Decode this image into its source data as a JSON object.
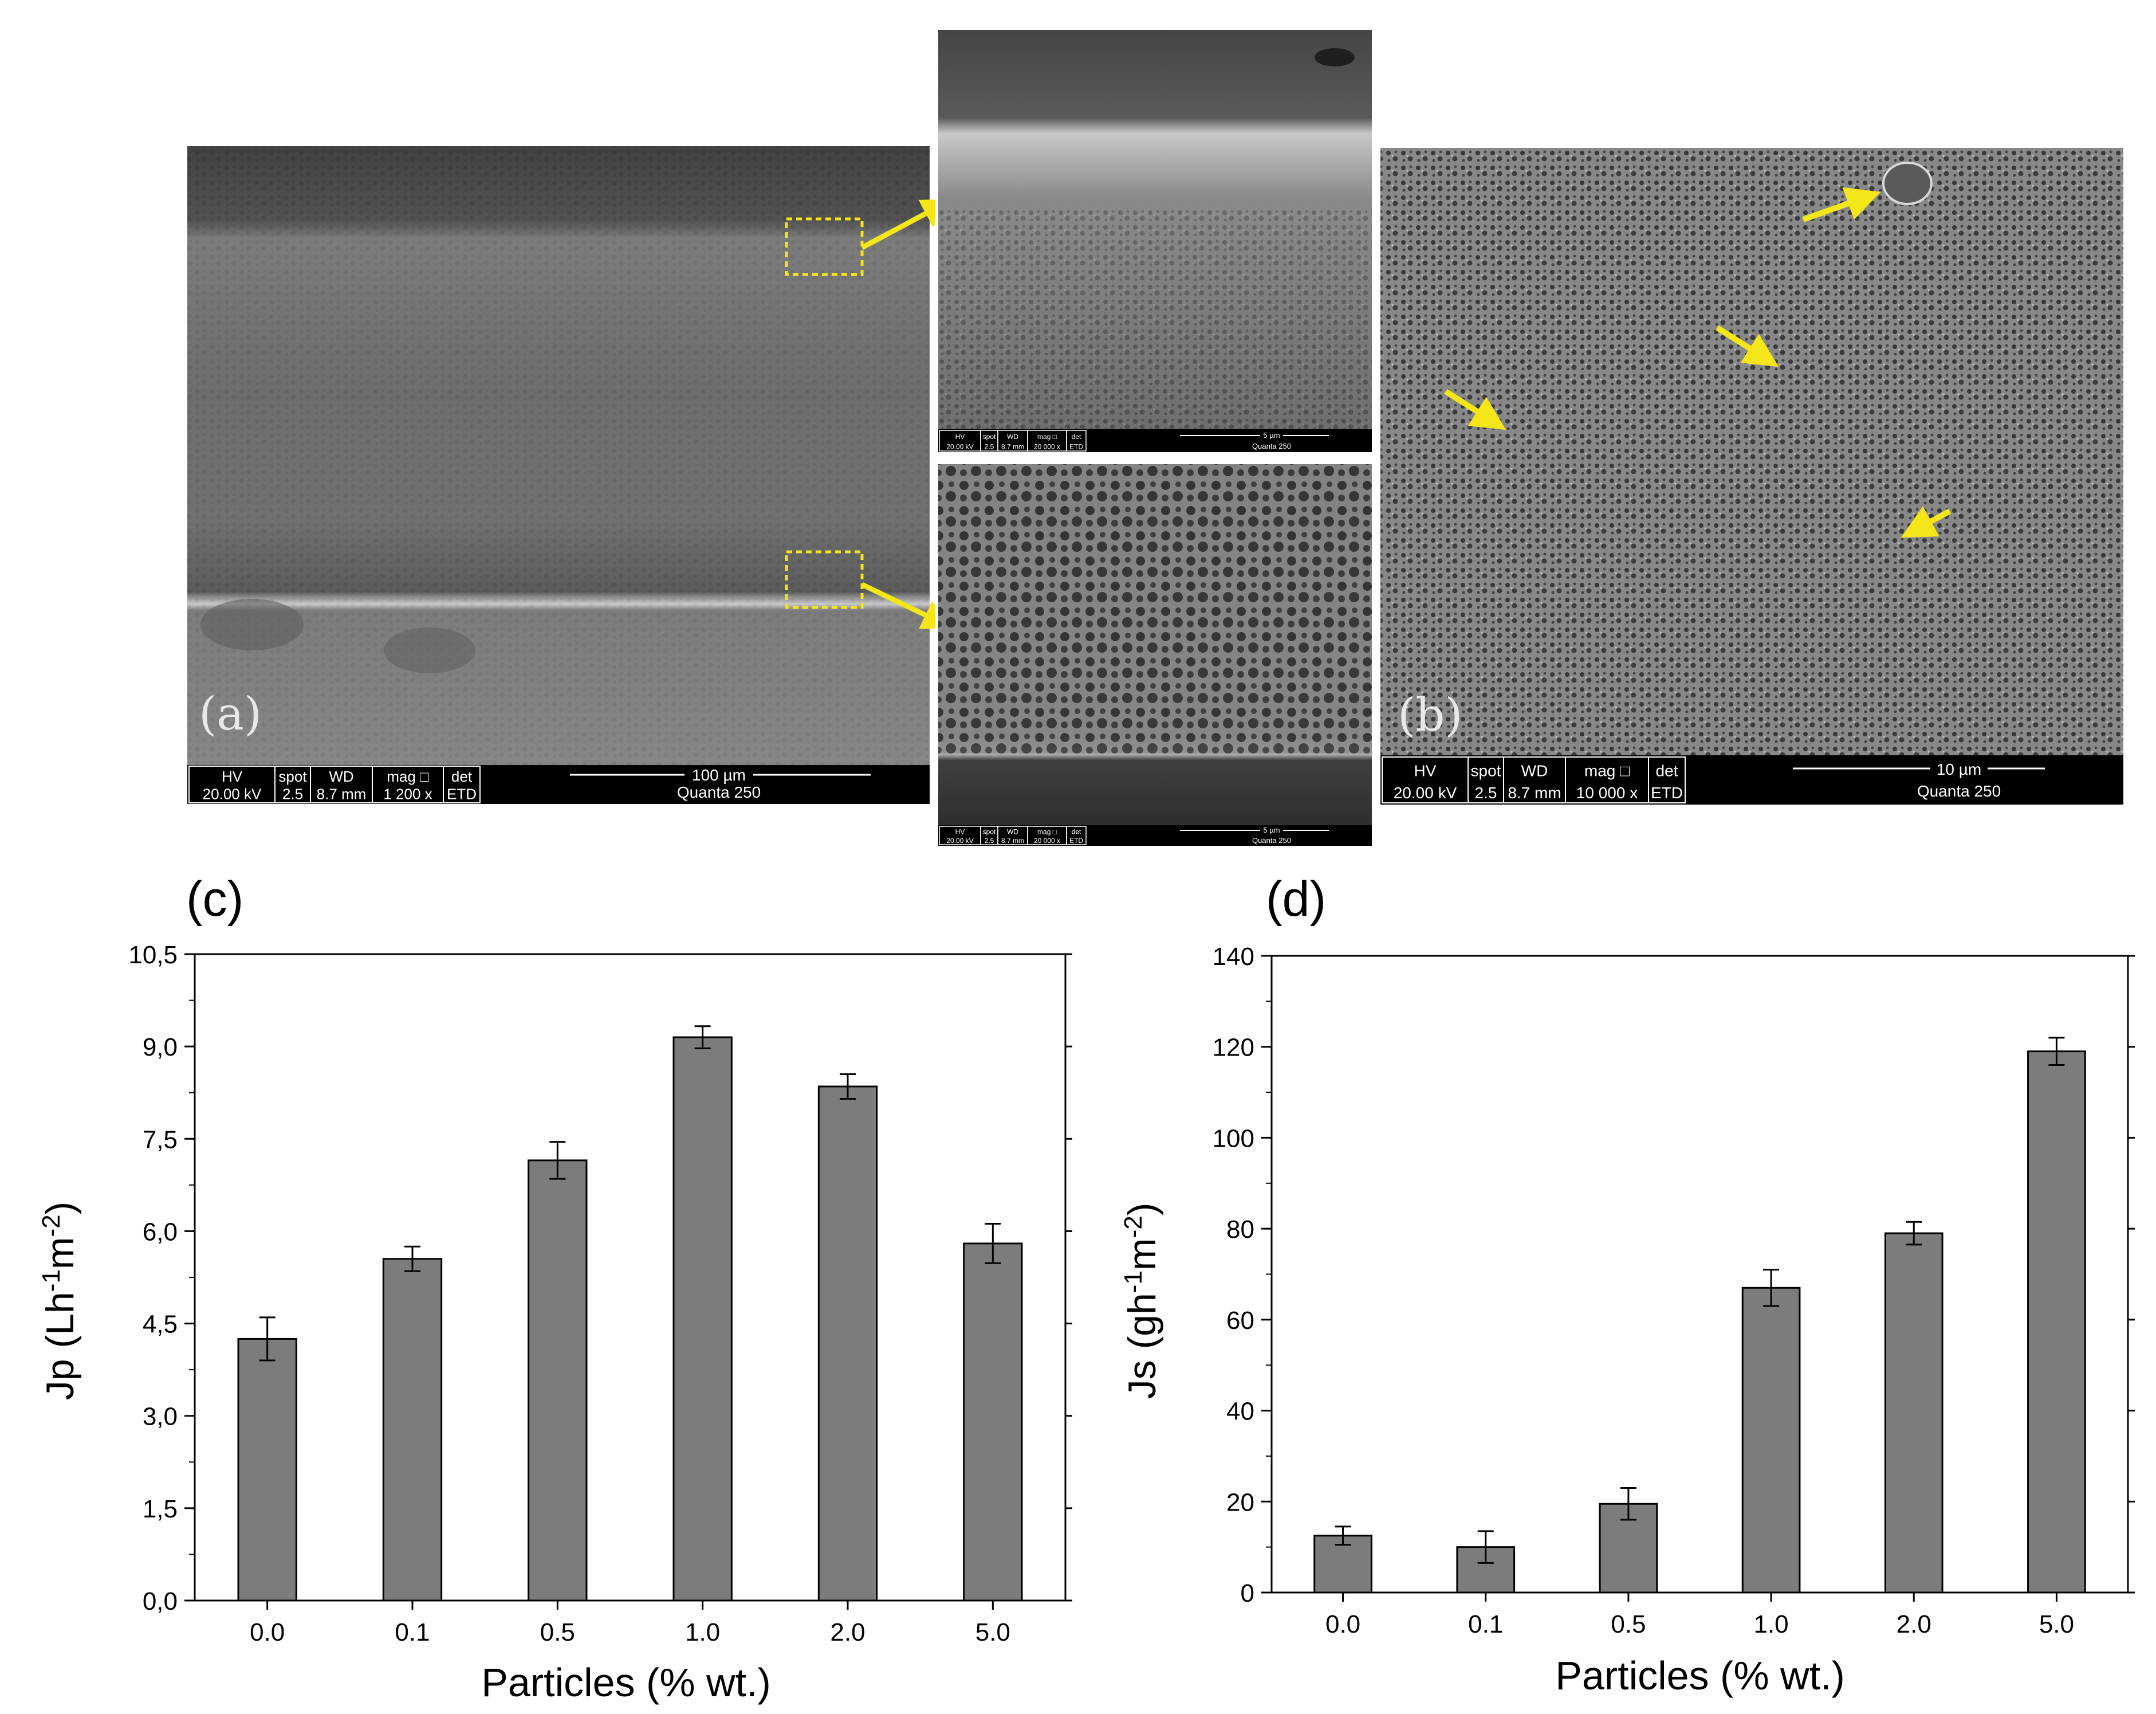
{
  "panels": {
    "a": {
      "label": "(a)",
      "databar": {
        "cells": [
          {
            "h": "HV",
            "v": "20.00 kV"
          },
          {
            "h": "spot",
            "v": "2.5"
          },
          {
            "h": "WD",
            "v": "8.7 mm"
          },
          {
            "h": "mag □",
            "v": "1 200 x"
          },
          {
            "h": "det",
            "v": "ETD"
          }
        ],
        "scale": "100 µm",
        "instrument": "Quanta 250"
      }
    },
    "a_top_zoom": {
      "databar": {
        "cells": [
          {
            "h": "HV",
            "v": "20.00 kV"
          },
          {
            "h": "spot",
            "v": "2.5"
          },
          {
            "h": "WD",
            "v": "8.7 mm"
          },
          {
            "h": "mag □",
            "v": "20 000 x"
          },
          {
            "h": "det",
            "v": "ETD"
          }
        ],
        "scale": "5 µm",
        "instrument": "Quanta 250"
      }
    },
    "a_bottom_zoom": {
      "databar": {
        "cells": [
          {
            "h": "HV",
            "v": "20.00 kV"
          },
          {
            "h": "spot",
            "v": "2.5"
          },
          {
            "h": "WD",
            "v": "8.7 mm"
          },
          {
            "h": "mag □",
            "v": "20 000 x"
          },
          {
            "h": "det",
            "v": "ETD"
          }
        ],
        "scale": "5 µm",
        "instrument": "Quanta 250"
      }
    },
    "b": {
      "label": "(b)",
      "databar": {
        "cells": [
          {
            "h": "HV",
            "v": "20.00 kV"
          },
          {
            "h": "spot",
            "v": "2.5"
          },
          {
            "h": "WD",
            "v": "8.7 mm"
          },
          {
            "h": "mag □",
            "v": "10 000 x"
          },
          {
            "h": "det",
            "v": "ETD"
          }
        ],
        "scale": "10 µm",
        "instrument": "Quanta 250"
      }
    }
  },
  "colors": {
    "arrow": "#f5e619",
    "bar": "#7c7c7c",
    "sem_dark": "#3a3a3a"
  },
  "chart_data": [
    {
      "panel_label": "(c)",
      "type": "bar",
      "categories": [
        "0.0",
        "0.1",
        "0.5",
        "1.0",
        "2.0",
        "5.0"
      ],
      "values": [
        4.25,
        5.55,
        7.15,
        9.15,
        8.35,
        5.8
      ],
      "errors": [
        0.35,
        0.2,
        0.3,
        0.18,
        0.2,
        0.32
      ],
      "xlabel": "Particles (% wt.)",
      "ylabel": {
        "base": "Jp (Lh",
        "sup1": "-1",
        "mid": "m",
        "sup2": "-2",
        "end": ")"
      },
      "ylim": [
        0,
        10.5
      ],
      "ytick_values": [
        0,
        1.5,
        3,
        4.5,
        6,
        7.5,
        9,
        10.5
      ],
      "ytick_labels": [
        "0,0",
        "1,5",
        "3,0",
        "4,5",
        "6,0",
        "7,5",
        "9,0",
        "10,5"
      ]
    },
    {
      "panel_label": "(d)",
      "type": "bar",
      "categories": [
        "0.0",
        "0.1",
        "0.5",
        "1.0",
        "2.0",
        "5.0"
      ],
      "values": [
        12.5,
        10,
        19.5,
        67,
        79,
        119
      ],
      "errors": [
        2,
        3.5,
        3.5,
        4,
        2.5,
        3
      ],
      "xlabel": "Particles (% wt.)",
      "ylabel": {
        "base": "Js (gh",
        "sup1": "-1",
        "mid": "m",
        "sup2": "-2",
        "end": ")"
      },
      "ylim": [
        0,
        140
      ],
      "ytick_values": [
        0,
        20,
        40,
        60,
        80,
        100,
        120,
        140
      ],
      "ytick_labels": [
        "0",
        "20",
        "40",
        "60",
        "80",
        "100",
        "120",
        "140"
      ]
    }
  ]
}
